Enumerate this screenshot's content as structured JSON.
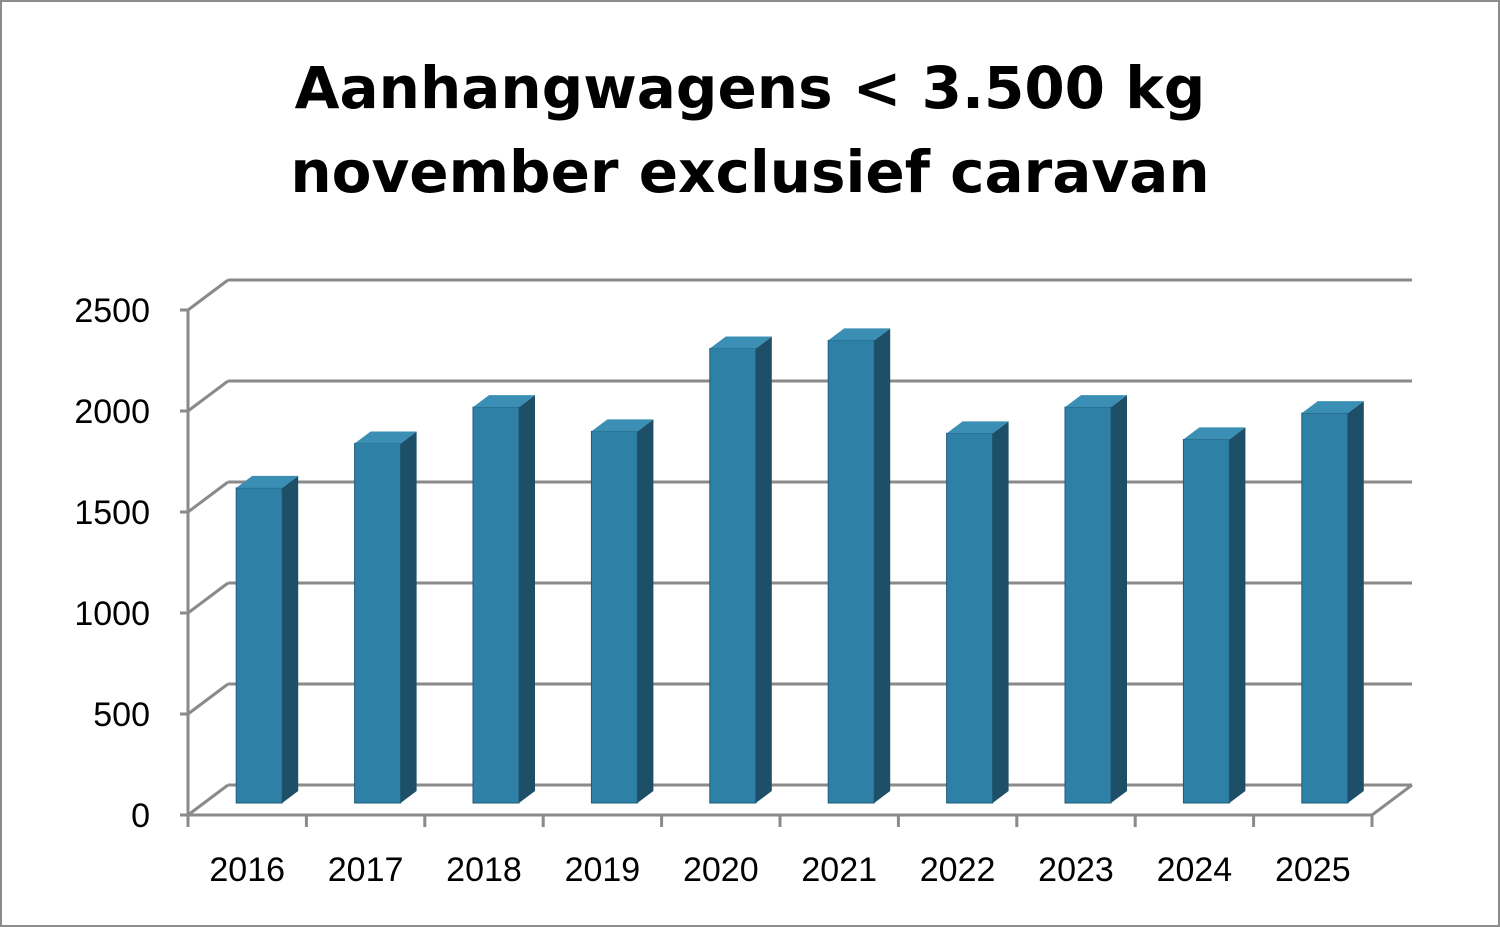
{
  "chart_data": {
    "type": "bar",
    "title_lines": [
      "Aanhangwagens < 3.500 kg",
      "november exclusief caravan"
    ],
    "categories": [
      "2016",
      "2017",
      "2018",
      "2019",
      "2020",
      "2021",
      "2022",
      "2023",
      "2024",
      "2025"
    ],
    "series": [
      {
        "values": [
          1560,
          1780,
          1960,
          1840,
          2250,
          2290,
          1830,
          1960,
          1800,
          1930
        ]
      }
    ],
    "y_ticks": [
      "0",
      "500",
      "1000",
      "1500",
      "2000",
      "2500"
    ],
    "ylim": [
      0,
      2500
    ],
    "grid": true,
    "legend": "none",
    "style": "3d-column",
    "colors": {
      "bar_front": "#2e80a6",
      "bar_side": "#1d5068",
      "bar_top": "#3b8fb5",
      "grid": "#8a8a8a",
      "axis": "#8a8a8a"
    }
  }
}
